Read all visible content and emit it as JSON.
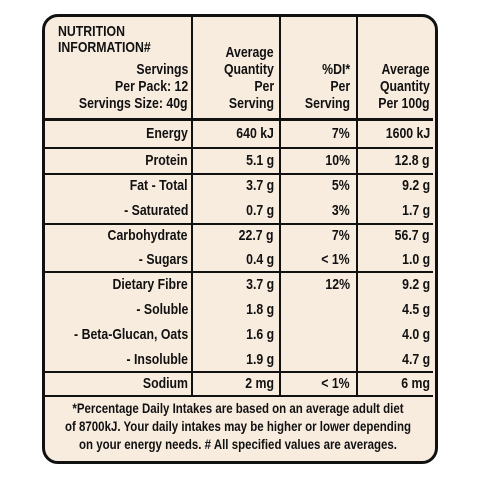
{
  "header": {
    "title_lines": [
      "NUTRITION",
      "INFORMATION#"
    ],
    "serving_lines": [
      "Servings",
      "Per Pack: 12",
      "Servings Size: 40g"
    ],
    "columns": [
      [
        "Average",
        "Quantity",
        "Per",
        "Serving"
      ],
      [
        "%DI*",
        "Per",
        "Serving"
      ],
      [
        "Average",
        "Quantity",
        "Per 100g"
      ]
    ]
  },
  "rows": [
    [
      "Energy",
      "640 kJ",
      "7%",
      "1600 kJ"
    ],
    [
      "Protein",
      "5.1 g",
      "10%",
      "12.8 g"
    ],
    [
      "Fat - Total",
      "3.7 g",
      "5%",
      "9.2 g"
    ],
    [
      "- Saturated",
      "0.7 g",
      "3%",
      "1.7 g"
    ],
    [
      "Carbohydrate",
      "22.7 g",
      "7%",
      "56.7 g"
    ],
    [
      "- Sugars",
      "0.4 g",
      "< 1%",
      "1.0 g"
    ],
    [
      "Dietary Fibre",
      "3.7 g",
      "12%",
      "9.2 g"
    ],
    [
      "- Soluble",
      "1.8 g",
      null,
      "4.5 g"
    ],
    [
      "- Beta-Glucan, Oats",
      "1.6 g",
      null,
      "4.0 g"
    ],
    [
      "- Insoluble",
      "1.9 g",
      null,
      "4.7 g"
    ],
    [
      "Sodium",
      "2 mg",
      "< 1%",
      "6 mg"
    ]
  ],
  "footnote_lines": [
    "*Percentage Daily Intakes are based on an average adult diet",
    "of 8700kJ. Your daily intakes may be higher or lower depending",
    "on your energy needs. # All specified values are averages."
  ]
}
